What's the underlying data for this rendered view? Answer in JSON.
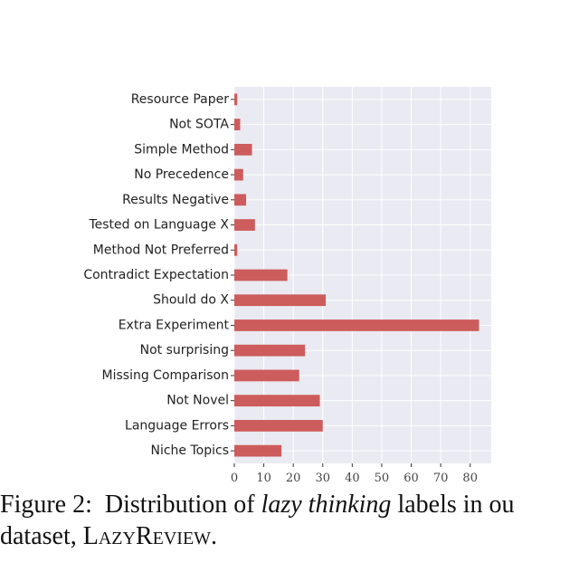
{
  "chart_data": {
    "type": "barh",
    "categories": [
      "Resource Paper",
      "Not SOTA",
      "Simple Method",
      "No Precedence",
      "Results Negative",
      "Tested on Language X",
      "Method Not Preferred",
      "Contradict Expectation",
      "Should do X",
      "Extra Experiment",
      "Not surprising",
      "Missing Comparison",
      "Not Novel",
      "Language Errors",
      "Niche Topics"
    ],
    "values": [
      1,
      2,
      6,
      3,
      4,
      7,
      1,
      18,
      31,
      83,
      24,
      22,
      29,
      30,
      16
    ],
    "color": "#cd5c5c",
    "xlim": [
      0,
      87.15
    ],
    "xticks": [
      0,
      10,
      20,
      30,
      40,
      50,
      60,
      70,
      80
    ],
    "grid": true
  },
  "caption": {
    "label": "Figure 2:",
    "text_1": "Distribution of",
    "emphasis": "lazy thinking",
    "text_2": "labels in ou",
    "text_3": "dataset,",
    "name": "LazyReview",
    "end": "."
  }
}
